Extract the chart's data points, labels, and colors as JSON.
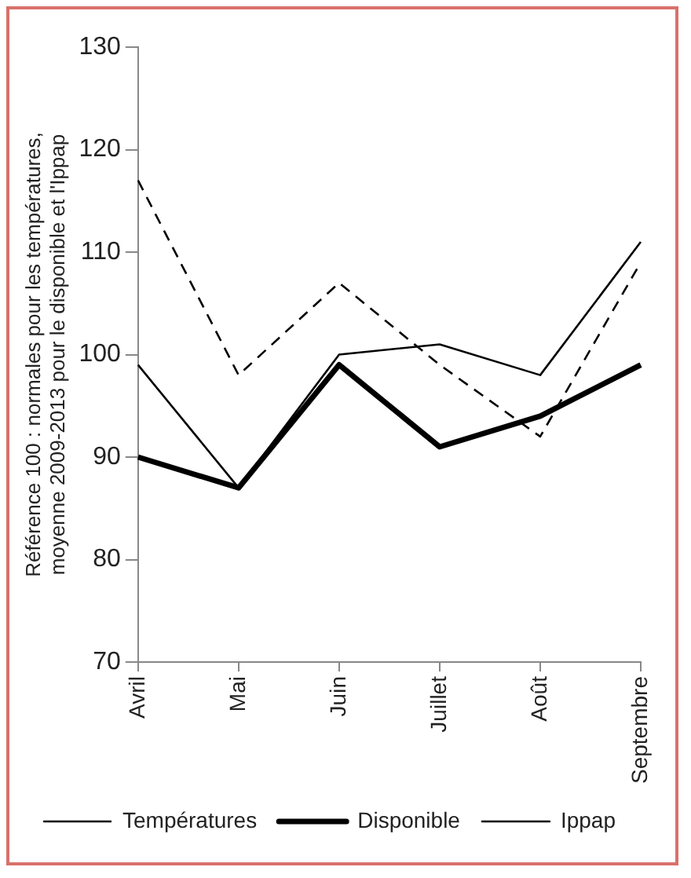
{
  "chart_data": {
    "type": "line",
    "ylabel": "Référence 100 : normales pour les températures, moyenne 2009-2013 pour le disponible et l'Ippap",
    "categories": [
      "Avril",
      "Mai",
      "Juin",
      "Juillet",
      "Août",
      "Septembre"
    ],
    "series": [
      {
        "name": "Températures",
        "color": "#000000",
        "line_style": "dashed",
        "values": [
          117,
          98,
          107,
          99,
          92,
          109
        ]
      },
      {
        "name": "Disponible",
        "color": "#000000",
        "line_style": "solid",
        "values": [
          90,
          87,
          99,
          91,
          94,
          99
        ]
      },
      {
        "name": "Ippap",
        "color": "#000000",
        "line_style": "solid",
        "values": [
          99,
          87,
          100,
          101,
          98,
          111
        ]
      }
    ],
    "ylim": [
      70,
      130
    ],
    "yticks": [
      70,
      80,
      90,
      100,
      110,
      120,
      130
    ],
    "grid": false,
    "legend": "bottom",
    "marker": "none"
  }
}
